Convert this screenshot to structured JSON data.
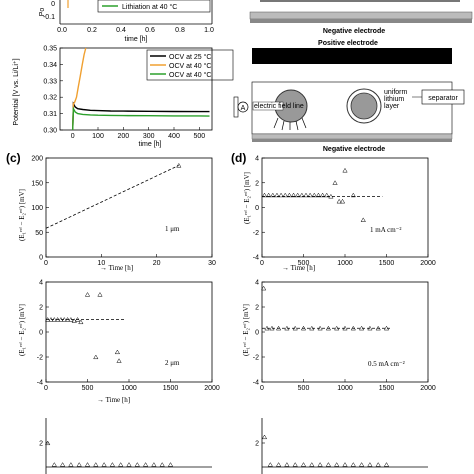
{
  "panel_labels": {
    "c": "(c)",
    "d": "(d)"
  },
  "top_left_top": {
    "y_label": "Po",
    "y_ticks": [
      "0",
      "-0.1"
    ],
    "x_label": "time [h]",
    "x_ticks": [
      "0.0",
      "0.2",
      "0.4",
      "0.6",
      "0.8",
      "1.0"
    ],
    "legend": [
      {
        "label": "Lithiation at 40 °C",
        "color": "#2ca02c"
      }
    ]
  },
  "top_left_bottom": {
    "y_label": "Potential [V vs. Li/Li⁺]",
    "x_label": "time [h]",
    "legend": [
      {
        "label": "OCV at 25 °C",
        "color": "#000000"
      },
      {
        "label": "OCV at 40 °C",
        "color": "#f0a030"
      },
      {
        "label": "OCV at 40 °C",
        "color": "#2ca02c"
      }
    ]
  },
  "diagram_top": {
    "label": "Negative electrode"
  },
  "diagram_bottom": {
    "positive": "Positive electrode",
    "negative": "Negative electrode",
    "separator": "separator",
    "field": "electric field line",
    "uniform": "uniform",
    "lithium": "lithium",
    "layer": "layer",
    "meter": "A"
  },
  "panel_c1": {
    "annotation": "1 μm",
    "x_label": "Time [h]"
  },
  "panel_c2": {
    "annotation": "2 μm",
    "x_label": "Time [h]"
  },
  "panel_d1": {
    "annotation": "1 mA cm⁻²",
    "x_label": "Time [h]"
  },
  "panel_d2": {
    "annotation": "0.5 mA cm⁻²"
  },
  "y_axis_label_parts": {
    "arrow": "→",
    "text": "(E₁ʳᵉᶠ − E₂ʳᵉᶠ) [mV]"
  },
  "chart_data": [
    {
      "type": "line",
      "title": "",
      "xlabel": "time [h]",
      "ylabel": "Potential [V vs. Li/Li⁺]",
      "xlim": [
        -50,
        550
      ],
      "ylim": [
        0.3,
        0.35
      ],
      "x_ticks": [
        0,
        100,
        200,
        300,
        400,
        500
      ],
      "y_ticks": [
        0.3,
        0.31,
        0.32,
        0.33,
        0.34,
        0.35
      ],
      "series": [
        {
          "name": "OCV at 25 °C",
          "color": "#000000",
          "x": [
            0,
            3,
            10,
            20,
            40,
            70,
            100,
            150,
            200,
            300,
            400,
            500,
            540
          ],
          "y": [
            0.3,
            0.316,
            0.314,
            0.313,
            0.3125,
            0.312,
            0.3118,
            0.3116,
            0.3115,
            0.3114,
            0.3113,
            0.3112,
            0.3112
          ]
        },
        {
          "name": "OCV at 40 °C",
          "color": "#f0a030",
          "x": [
            0,
            3,
            8,
            15,
            22,
            30,
            38,
            45,
            52
          ],
          "y": [
            0.3,
            0.316,
            0.317,
            0.32,
            0.326,
            0.333,
            0.34,
            0.346,
            0.35
          ]
        },
        {
          "name": "OCV at 40 °C",
          "color": "#2ca02c",
          "x": [
            0,
            3,
            10,
            20,
            40,
            70,
            100,
            150,
            200,
            300,
            400,
            500,
            540
          ],
          "y": [
            0.3,
            0.313,
            0.311,
            0.31,
            0.3095,
            0.3092,
            0.309,
            0.3089,
            0.3088,
            0.3087,
            0.3086,
            0.3086,
            0.3085
          ]
        }
      ]
    },
    {
      "type": "scatter",
      "panel": "(c) 1 μm",
      "xlabel": "Time [h]",
      "ylabel": "(E1ref − E2ref) [mV]",
      "xlim": [
        0,
        30
      ],
      "ylim": [
        0,
        200
      ],
      "x_ticks": [
        0,
        10,
        20,
        30
      ],
      "y_ticks": [
        0,
        50,
        100,
        150,
        200
      ],
      "points": [
        {
          "x": 24,
          "y": 185
        }
      ],
      "fit_line": {
        "x": [
          0,
          24
        ],
        "y": [
          58,
          185
        ]
      }
    },
    {
      "type": "scatter",
      "panel": "(c) 2 μm",
      "xlabel": "Time [h]",
      "ylabel": "(E1ref − E2ref) [mV]",
      "xlim": [
        0,
        2000
      ],
      "ylim": [
        -4,
        4
      ],
      "x_ticks": [
        0,
        500,
        1000,
        1500,
        2000
      ],
      "y_ticks": [
        -4,
        -2,
        0,
        2,
        4
      ],
      "points": [
        {
          "x": 20,
          "y": 1
        },
        {
          "x": 60,
          "y": 1
        },
        {
          "x": 100,
          "y": 1
        },
        {
          "x": 140,
          "y": 1
        },
        {
          "x": 180,
          "y": 1
        },
        {
          "x": 220,
          "y": 1
        },
        {
          "x": 260,
          "y": 1
        },
        {
          "x": 300,
          "y": 1
        },
        {
          "x": 340,
          "y": 0.9
        },
        {
          "x": 380,
          "y": 1
        },
        {
          "x": 420,
          "y": 0.8
        },
        {
          "x": 500,
          "y": 3
        },
        {
          "x": 600,
          "y": -2
        },
        {
          "x": 650,
          "y": 3
        },
        {
          "x": 860,
          "y": -1.6
        },
        {
          "x": 880,
          "y": -2.3
        }
      ],
      "fit_line": {
        "x": [
          0,
          950
        ],
        "y": [
          1,
          1
        ]
      }
    },
    {
      "type": "scatter",
      "panel": "(d) 1 mA cm−2",
      "xlabel": "Time [h]",
      "ylabel": "(E1ref − E2ref) [mV]",
      "xlim": [
        0,
        2000
      ],
      "ylim": [
        -4,
        4
      ],
      "x_ticks": [
        0,
        500,
        1000,
        1500,
        2000
      ],
      "y_ticks": [
        -4,
        -2,
        0,
        2,
        4
      ],
      "points": [
        {
          "x": 30,
          "y": 1
        },
        {
          "x": 80,
          "y": 1
        },
        {
          "x": 130,
          "y": 1
        },
        {
          "x": 180,
          "y": 1
        },
        {
          "x": 230,
          "y": 1
        },
        {
          "x": 280,
          "y": 1
        },
        {
          "x": 330,
          "y": 1
        },
        {
          "x": 380,
          "y": 1
        },
        {
          "x": 430,
          "y": 1
        },
        {
          "x": 480,
          "y": 1
        },
        {
          "x": 530,
          "y": 1
        },
        {
          "x": 580,
          "y": 1
        },
        {
          "x": 630,
          "y": 1
        },
        {
          "x": 680,
          "y": 1
        },
        {
          "x": 730,
          "y": 1
        },
        {
          "x": 780,
          "y": 1
        },
        {
          "x": 830,
          "y": 0.9
        },
        {
          "x": 880,
          "y": 2
        },
        {
          "x": 930,
          "y": 0.5
        },
        {
          "x": 970,
          "y": 0.5
        },
        {
          "x": 1000,
          "y": 3
        },
        {
          "x": 1100,
          "y": 1
        },
        {
          "x": 1220,
          "y": -1
        }
      ],
      "fit_line": {
        "x": [
          0,
          1450
        ],
        "y": [
          0.9,
          0.9
        ]
      }
    },
    {
      "type": "scatter",
      "panel": "(d) 0.5 mA cm−2",
      "xlabel": "Time [h]",
      "ylabel": "(E1ref − E2ref) [mV]",
      "xlim": [
        0,
        2000
      ],
      "ylim": [
        -4,
        4
      ],
      "x_ticks": [
        0,
        500,
        1000,
        1500,
        2000
      ],
      "y_ticks": [
        -4,
        -2,
        0,
        2,
        4
      ],
      "points": [
        {
          "x": 20,
          "y": 3.5
        },
        {
          "x": 60,
          "y": 0.3
        },
        {
          "x": 120,
          "y": 0.3
        },
        {
          "x": 200,
          "y": 0.3
        },
        {
          "x": 300,
          "y": 0.3
        },
        {
          "x": 400,
          "y": 0.3
        },
        {
          "x": 500,
          "y": 0.3
        },
        {
          "x": 600,
          "y": 0.3
        },
        {
          "x": 700,
          "y": 0.3
        },
        {
          "x": 800,
          "y": 0.3
        },
        {
          "x": 900,
          "y": 0.3
        },
        {
          "x": 1000,
          "y": 0.3
        },
        {
          "x": 1100,
          "y": 0.3
        },
        {
          "x": 1200,
          "y": 0.3
        },
        {
          "x": 1300,
          "y": 0.3
        },
        {
          "x": 1400,
          "y": 0.3
        },
        {
          "x": 1500,
          "y": 0.3
        }
      ],
      "fit_line": {
        "x": [
          0,
          1550
        ],
        "y": [
          0.3,
          0.3
        ]
      }
    },
    {
      "type": "scatter",
      "panel": "(c) bottom",
      "xlim": [
        0,
        2000
      ],
      "ylim": [
        -4,
        4
      ],
      "y_ticks": [
        2
      ],
      "points": [
        {
          "x": 20,
          "y": 2
        },
        {
          "x": 100,
          "y": 0.2
        },
        {
          "x": 200,
          "y": 0.2
        },
        {
          "x": 300,
          "y": 0.2
        },
        {
          "x": 400,
          "y": 0.2
        },
        {
          "x": 500,
          "y": 0.2
        },
        {
          "x": 600,
          "y": 0.2
        },
        {
          "x": 700,
          "y": 0.2
        },
        {
          "x": 800,
          "y": 0.2
        },
        {
          "x": 900,
          "y": 0.2
        },
        {
          "x": 1000,
          "y": 0.2
        },
        {
          "x": 1100,
          "y": 0.2
        },
        {
          "x": 1200,
          "y": 0.2
        },
        {
          "x": 1300,
          "y": 0.2
        },
        {
          "x": 1400,
          "y": 0.2
        },
        {
          "x": 1500,
          "y": 0.2
        }
      ]
    },
    {
      "type": "scatter",
      "panel": "(d) bottom",
      "xlim": [
        0,
        2000
      ],
      "ylim": [
        -4,
        4
      ],
      "y_ticks": [
        2
      ],
      "points": [
        {
          "x": 30,
          "y": 2.5
        },
        {
          "x": 100,
          "y": 0.2
        },
        {
          "x": 200,
          "y": 0.2
        },
        {
          "x": 300,
          "y": 0.2
        },
        {
          "x": 400,
          "y": 0.2
        },
        {
          "x": 500,
          "y": 0.2
        },
        {
          "x": 600,
          "y": 0.2
        },
        {
          "x": 700,
          "y": 0.2
        },
        {
          "x": 800,
          "y": 0.2
        },
        {
          "x": 900,
          "y": 0.2
        },
        {
          "x": 1000,
          "y": 0.2
        },
        {
          "x": 1100,
          "y": 0.2
        },
        {
          "x": 1200,
          "y": 0.2
        },
        {
          "x": 1300,
          "y": 0.2
        },
        {
          "x": 1400,
          "y": 0.2
        },
        {
          "x": 1500,
          "y": 0.2
        }
      ]
    }
  ]
}
